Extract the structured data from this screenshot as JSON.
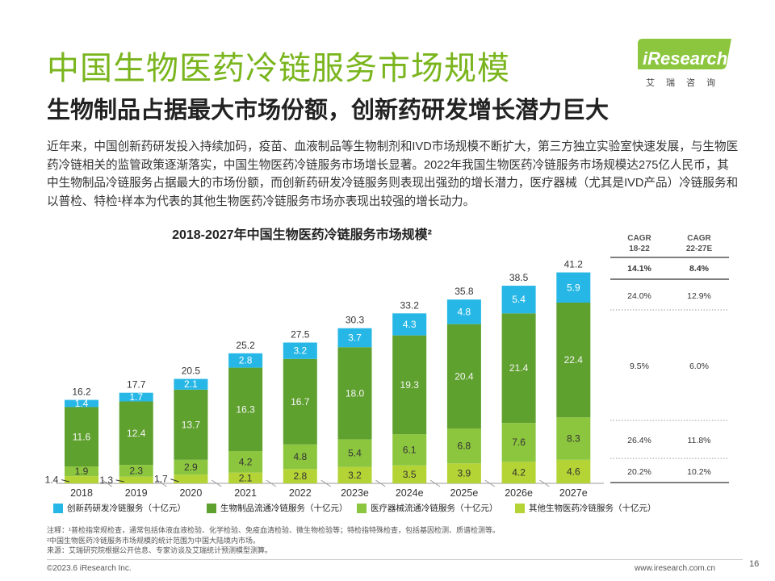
{
  "header": {
    "title": "中国生物医药冷链服务市场规模",
    "subtitle": "生物制品占据最大市场份额，创新药研发增长潜力巨大",
    "logo_text": "iResearch",
    "logo_cn": "艾瑞咨询"
  },
  "intro": "近年来，中国创新药研发投入持续加码，疫苗、血液制品等生物制剂和IVD市场规模不断扩大，第三方独立实验室快速发展，与生物医药冷链相关的监管政策逐渐落实，中国生物医药冷链服务市场增长显著。2022年我国生物医药冷链服务市场规模达275亿人民币，其中生物制品冷链服务占据最大的市场份额，而创新药研发冷链服务则表现出强劲的增长潜力，医疗器械（尤其是IVD产品）冷链服务和以普检、特检¹样本为代表的其他生物医药冷链服务市场亦表现出较强的增长动力。",
  "colors": {
    "innovative": "#26b7e6",
    "bio": "#5fa12e",
    "device": "#8cc63f",
    "other": "#b4d335",
    "title_green": "#7ab51d",
    "logo_green": "#8cc63f"
  },
  "chart_data": {
    "type": "bar",
    "stacked": true,
    "title": "2018-2027年中国生物医药冷链服务市场规模²",
    "categories": [
      "2018",
      "2019",
      "2020",
      "2021",
      "2022",
      "2023e",
      "2024e",
      "2025e",
      "2026e",
      "2027e"
    ],
    "totals": [
      "16.2",
      "17.7",
      "20.5",
      "25.2",
      "27.5",
      "30.3",
      "33.2",
      "35.8",
      "38.5",
      "41.2"
    ],
    "series": [
      {
        "name": "其他生物医药冷链服务（十亿元）",
        "key": "other",
        "values": [
          1.4,
          1.3,
          1.7,
          2.1,
          2.8,
          3.2,
          3.5,
          3.9,
          4.2,
          4.6
        ]
      },
      {
        "name": "医疗器械流通冷链服务（十亿元）",
        "key": "device",
        "values": [
          1.9,
          2.3,
          2.9,
          4.2,
          4.8,
          5.4,
          6.1,
          6.8,
          7.6,
          8.3
        ]
      },
      {
        "name": "生物制品流通冷链服务（十亿元）",
        "key": "bio",
        "values": [
          11.6,
          12.4,
          13.7,
          16.3,
          16.7,
          18.0,
          19.3,
          20.4,
          21.4,
          22.4
        ]
      },
      {
        "name": "创新药研发冷链服务（十亿元）",
        "key": "innovative",
        "values": [
          1.4,
          1.7,
          2.1,
          2.8,
          3.2,
          3.7,
          4.3,
          4.8,
          5.4,
          5.9
        ]
      }
    ],
    "ylim": [
      0,
      44
    ],
    "legend_order": [
      "innovative",
      "bio",
      "device",
      "other"
    ]
  },
  "cagr": {
    "header1": [
      "CAGR",
      "18-22"
    ],
    "header2": [
      "CAGR",
      "22-27E"
    ],
    "total": [
      "14.1%",
      "8.4%"
    ],
    "innovative": [
      "24.0%",
      "12.9%"
    ],
    "bio": [
      "9.5%",
      "6.0%"
    ],
    "device": [
      "26.4%",
      "11.8%"
    ],
    "other": [
      "20.2%",
      "10.2%"
    ]
  },
  "notes": [
    "注释：¹普检指常规检查，通常包括体液血液检验、化学检验、免疫血清检验、微生物检验等；特检指特殊检查，包括基因检测、质谱检测等。",
    "²中国生物医药冷链服务市场规模的统计范围为中国大陆境内市场。",
    "来源：艾瑞研究院根据公开信息、专家访谈及艾瑞统计预测模型测算。"
  ],
  "footer": {
    "left": "©2023.6 iResearch Inc.",
    "right": "www.iresearch.com.cn",
    "page": "16"
  }
}
